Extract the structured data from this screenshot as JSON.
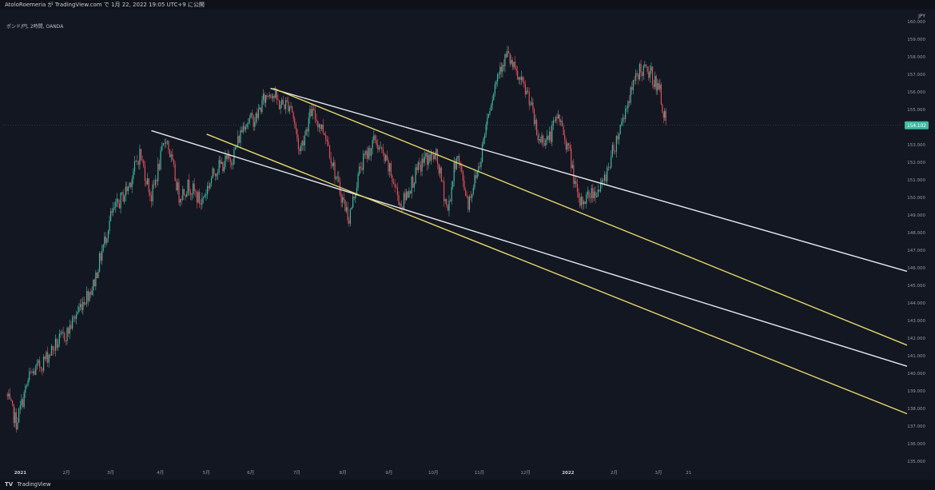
{
  "header": {
    "author_line": "AtoloRoemeria が TradingView.com で 1月 22, 2022 19:05 UTC+9 に公開"
  },
  "symbol_label": "ポンド/円, 2時間, OANDA",
  "footer": {
    "logo": "TV",
    "brand": "TradingView"
  },
  "colors": {
    "background": "#131722",
    "candle_up": "#3fb9a1",
    "candle_down": "#e0505a",
    "line_white": "#e6e8ee",
    "line_yellow": "#e4d66a",
    "price_tag_bg": "#3fb9a1"
  },
  "chart_data": {
    "type": "candlestick",
    "currency_label": "JPY",
    "ylim": [
      134.5,
      160.5
    ],
    "y_ticks": [
      "160.000",
      "159.000",
      "158.000",
      "157.000",
      "156.000",
      "155.000",
      "154.000",
      "153.000",
      "152.000",
      "151.000",
      "150.000",
      "149.000",
      "148.000",
      "147.000",
      "146.000",
      "145.000",
      "144.000",
      "143.000",
      "142.000",
      "141.000",
      "140.000",
      "139.000",
      "138.000",
      "137.000",
      "136.000",
      "135.000"
    ],
    "x_ticks": [
      "2021",
      "2月",
      "3月",
      "4月",
      "5月",
      "6月",
      "7月",
      "8月",
      "9月",
      "10月",
      "11月",
      "12月",
      "2022",
      "2月",
      "3月",
      "21"
    ],
    "last_price": "154.102",
    "price_path": [
      {
        "x": 0.0,
        "y": 138.8
      },
      {
        "x": 0.35,
        "y": 137.2
      },
      {
        "x": 0.8,
        "y": 139.8
      },
      {
        "x": 1.2,
        "y": 140.5
      },
      {
        "x": 1.7,
        "y": 141.6
      },
      {
        "x": 2.1,
        "y": 142.3
      },
      {
        "x": 2.6,
        "y": 144.0
      },
      {
        "x": 3.0,
        "y": 145.0
      },
      {
        "x": 3.6,
        "y": 148.9
      },
      {
        "x": 4.2,
        "y": 150.6
      },
      {
        "x": 4.6,
        "y": 152.5
      },
      {
        "x": 5.0,
        "y": 150.0
      },
      {
        "x": 5.5,
        "y": 153.5
      },
      {
        "x": 5.95,
        "y": 150.1
      },
      {
        "x": 6.3,
        "y": 150.7
      },
      {
        "x": 6.7,
        "y": 149.7
      },
      {
        "x": 7.2,
        "y": 151.6
      },
      {
        "x": 7.8,
        "y": 152.3
      },
      {
        "x": 8.2,
        "y": 154.3
      },
      {
        "x": 8.6,
        "y": 154.5
      },
      {
        "x": 8.85,
        "y": 155.5
      },
      {
        "x": 9.1,
        "y": 156.1
      },
      {
        "x": 9.4,
        "y": 155.3
      },
      {
        "x": 9.8,
        "y": 155.3
      },
      {
        "x": 10.1,
        "y": 152.6
      },
      {
        "x": 10.5,
        "y": 154.9
      },
      {
        "x": 11.0,
        "y": 153.6
      },
      {
        "x": 11.4,
        "y": 150.8
      },
      {
        "x": 11.8,
        "y": 148.8
      },
      {
        "x": 12.2,
        "y": 151.8
      },
      {
        "x": 12.7,
        "y": 153.3
      },
      {
        "x": 13.2,
        "y": 151.5
      },
      {
        "x": 13.6,
        "y": 149.5
      },
      {
        "x": 14.0,
        "y": 151.0
      },
      {
        "x": 14.4,
        "y": 152.2
      },
      {
        "x": 14.8,
        "y": 152.3
      },
      {
        "x": 15.2,
        "y": 149.2
      },
      {
        "x": 15.5,
        "y": 152.5
      },
      {
        "x": 15.9,
        "y": 149.7
      },
      {
        "x": 16.3,
        "y": 152.0
      },
      {
        "x": 16.6,
        "y": 155.0
      },
      {
        "x": 17.0,
        "y": 157.5
      },
      {
        "x": 17.25,
        "y": 158.1
      },
      {
        "x": 17.6,
        "y": 156.8
      },
      {
        "x": 18.0,
        "y": 155.7
      },
      {
        "x": 18.3,
        "y": 153.3
      },
      {
        "x": 18.7,
        "y": 153.4
      },
      {
        "x": 19.0,
        "y": 154.7
      },
      {
        "x": 19.4,
        "y": 152.4
      },
      {
        "x": 19.7,
        "y": 149.6
      },
      {
        "x": 20.1,
        "y": 150.2
      },
      {
        "x": 20.5,
        "y": 150.6
      },
      {
        "x": 21.0,
        "y": 153.3
      },
      {
        "x": 21.4,
        "y": 155.5
      },
      {
        "x": 21.8,
        "y": 157.3
      },
      {
        "x": 22.2,
        "y": 157.0
      },
      {
        "x": 22.5,
        "y": 156.0
      },
      {
        "x": 22.7,
        "y": 154.1
      }
    ],
    "trendlines": [
      {
        "color": "white",
        "from": {
          "x": 9.1,
          "y": 156.2
        },
        "to": {
          "x": 31.0,
          "y": 145.8
        }
      },
      {
        "color": "yellow",
        "from": {
          "x": 9.2,
          "y": 156.2
        },
        "to": {
          "x": 31.0,
          "y": 141.6
        }
      },
      {
        "color": "white",
        "from": {
          "x": 5.0,
          "y": 153.8
        },
        "to": {
          "x": 31.0,
          "y": 140.4
        }
      },
      {
        "color": "yellow",
        "from": {
          "x": 6.9,
          "y": 153.6
        },
        "to": {
          "x": 31.0,
          "y": 137.7
        }
      }
    ]
  }
}
